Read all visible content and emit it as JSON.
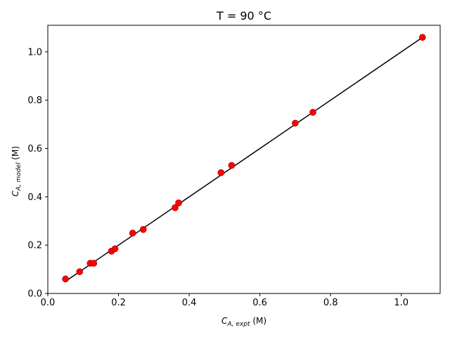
{
  "chart_data": {
    "type": "scatter",
    "title": "T = 90 °C",
    "xlabel": {
      "main": "C",
      "sub": "A, expt",
      "unit": " (M)"
    },
    "ylabel": {
      "main": "C",
      "sub": "A, model",
      "unit": " (M)"
    },
    "xlim": [
      0.0,
      1.11
    ],
    "ylim": [
      0.0,
      1.11
    ],
    "xticks": [
      0.0,
      0.2,
      0.4,
      0.6,
      0.8,
      1.0
    ],
    "yticks": [
      0.0,
      0.2,
      0.4,
      0.6,
      0.8,
      1.0
    ],
    "xtick_labels": [
      "0.0",
      "0.2",
      "0.4",
      "0.6",
      "0.8",
      "1.0"
    ],
    "ytick_labels": [
      "0.0",
      "0.2",
      "0.4",
      "0.6",
      "0.8",
      "1.0"
    ],
    "grid": false,
    "series": [
      {
        "kind": "scatter",
        "color": "#ff0000",
        "x": [
          0.05,
          0.09,
          0.12,
          0.13,
          0.18,
          0.19,
          0.24,
          0.27,
          0.36,
          0.37,
          0.49,
          0.52,
          0.7,
          0.75,
          1.06
        ],
        "y": [
          0.06,
          0.09,
          0.125,
          0.125,
          0.175,
          0.185,
          0.25,
          0.265,
          0.355,
          0.375,
          0.5,
          0.53,
          0.705,
          0.75,
          1.06
        ]
      },
      {
        "kind": "line",
        "color": "#000000",
        "x": [
          0.05,
          1.06
        ],
        "y": [
          0.05,
          1.06
        ]
      }
    ]
  }
}
